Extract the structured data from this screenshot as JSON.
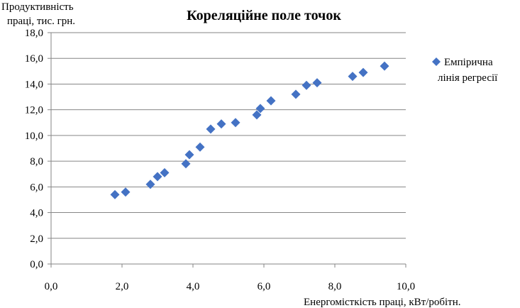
{
  "chart_data": {
    "type": "scatter",
    "title": "Кореляційне поле точок",
    "ylabel_lines": [
      "Продуктивність",
      "праці, тис. грн."
    ],
    "xlabel": "Енергомісткість праці, кВт/робітн.",
    "xlim": [
      0,
      10
    ],
    "ylim": [
      0,
      18
    ],
    "xticks": [
      "0,0",
      "2,0",
      "4,0",
      "6,0",
      "8,0",
      "10,0"
    ],
    "yticks": [
      "0,0",
      "2,0",
      "4,0",
      "6,0",
      "8,0",
      "10,0",
      "12,0",
      "14,0",
      "16,0",
      "18,0"
    ],
    "grid": "horizontal",
    "legend_position": "right",
    "series": [
      {
        "name_lines": [
          "Емпірична",
          "лінія регресії"
        ],
        "color": "#4472C4",
        "marker": "diamond",
        "points": [
          [
            1.8,
            5.4
          ],
          [
            2.1,
            5.6
          ],
          [
            2.8,
            6.2
          ],
          [
            3.0,
            6.8
          ],
          [
            3.2,
            7.1
          ],
          [
            3.8,
            7.8
          ],
          [
            3.9,
            8.5
          ],
          [
            4.2,
            9.1
          ],
          [
            4.5,
            10.5
          ],
          [
            4.8,
            10.9
          ],
          [
            5.2,
            11.0
          ],
          [
            5.8,
            11.6
          ],
          [
            5.9,
            12.1
          ],
          [
            6.2,
            12.7
          ],
          [
            6.9,
            13.2
          ],
          [
            7.2,
            13.9
          ],
          [
            7.5,
            14.1
          ],
          [
            8.5,
            14.6
          ],
          [
            8.8,
            14.9
          ],
          [
            9.4,
            15.4
          ]
        ]
      }
    ]
  }
}
